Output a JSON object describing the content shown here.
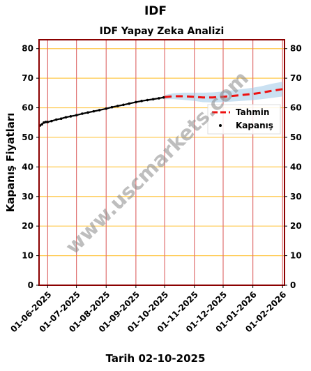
{
  "page": {
    "title": "IDF",
    "footer": "Tarih 02-10-2025",
    "watermark": "www.uscmarkets.com"
  },
  "colors": {
    "frame": "#8b0000",
    "grid_h": "#ffc84a",
    "grid_v": "#e07070",
    "price": "#000000",
    "forecast": "#ee1111",
    "band": "#9ec8e8"
  },
  "chart_data": {
    "type": "line",
    "title": "IDF Yapay Zeka Analizi",
    "xlabel": "",
    "ylabel": "Kapanış Fiyatları",
    "ylim": [
      0,
      83
    ],
    "yticks": [
      0,
      10,
      20,
      30,
      40,
      50,
      60,
      70,
      80
    ],
    "xlim": [
      "2025-05-23",
      "2026-02-03"
    ],
    "xticks": [
      "2025-06-01",
      "2025-07-01",
      "2025-08-01",
      "2025-09-01",
      "2025-10-01",
      "2025-11-01",
      "2025-12-01",
      "2026-01-01",
      "2026-02-01"
    ],
    "xtick_labels": [
      "01-06-2025",
      "01-07-2025",
      "01-08-2025",
      "01-09-2025",
      "01-10-2025",
      "01-11-2025",
      "01-12-2025",
      "01-01-2026",
      "01-02-2026"
    ],
    "grid": true,
    "legend_position": "right",
    "series": [
      {
        "name": "Kapanış",
        "style": "points",
        "x": [
          "2025-05-24",
          "2025-05-26",
          "2025-05-28",
          "2025-05-30",
          "2025-06-01",
          "2025-06-05",
          "2025-06-10",
          "2025-06-15",
          "2025-06-20",
          "2025-06-25",
          "2025-07-01",
          "2025-07-07",
          "2025-07-13",
          "2025-07-19",
          "2025-07-25",
          "2025-08-01",
          "2025-08-07",
          "2025-08-13",
          "2025-08-19",
          "2025-08-25",
          "2025-09-01",
          "2025-09-07",
          "2025-09-13",
          "2025-09-19",
          "2025-09-25",
          "2025-09-30"
        ],
        "y": [
          54.0,
          54.4,
          55.0,
          55.2,
          55.2,
          55.5,
          56.0,
          56.3,
          56.8,
          57.1,
          57.5,
          58.0,
          58.4,
          58.8,
          59.2,
          59.7,
          60.2,
          60.6,
          61.0,
          61.4,
          61.9,
          62.3,
          62.6,
          62.9,
          63.2,
          63.5
        ]
      },
      {
        "name": "Tahmin",
        "style": "dashed",
        "x": [
          "2025-10-01",
          "2025-10-10",
          "2025-10-20",
          "2025-11-01",
          "2025-11-10",
          "2025-11-20",
          "2025-12-01",
          "2025-12-10",
          "2025-12-20",
          "2026-01-01",
          "2026-01-10",
          "2026-01-20",
          "2026-02-01"
        ],
        "y": [
          63.6,
          63.9,
          63.9,
          63.7,
          63.5,
          63.5,
          63.7,
          64.0,
          64.3,
          64.7,
          65.1,
          65.7,
          66.3
        ],
        "band_low": [
          62.9,
          62.9,
          62.7,
          62.3,
          61.9,
          61.8,
          61.9,
          62.1,
          62.3,
          62.6,
          62.9,
          63.3,
          63.8
        ],
        "band_high": [
          64.3,
          64.9,
          65.1,
          65.1,
          65.1,
          65.2,
          65.5,
          65.9,
          66.3,
          66.8,
          67.3,
          68.1,
          68.8
        ]
      }
    ]
  }
}
